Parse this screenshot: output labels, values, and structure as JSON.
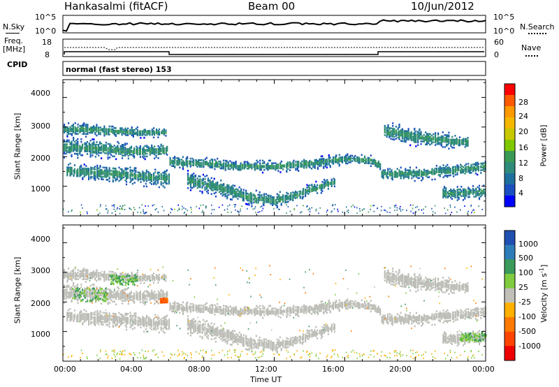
{
  "header": {
    "station": "Hankasalmi (fitACF)",
    "beam": "Beam 00",
    "date": "10/Jun/2012"
  },
  "sky_panel": {
    "left_label": "N.Sky",
    "right_label": "N.Search",
    "left_ticks": [
      "10^5",
      "10^0"
    ],
    "right_ticks": [
      "10^5",
      "10^0"
    ]
  },
  "freq_panel": {
    "left_label_line1": "Freq.",
    "left_label_line2": "[MHz]",
    "right_label": "Nave",
    "left_ticks": [
      "18",
      "8"
    ],
    "right_ticks": [
      "60",
      "0"
    ]
  },
  "cpid": {
    "label": "CPID",
    "text": "normal (fast stereo) 153"
  },
  "chart_data": [
    {
      "type": "heatmap",
      "name": "power",
      "ylabel": "Slant Range [km]",
      "ylim": [
        0,
        4600
      ],
      "yticks": [
        "4000",
        "3000",
        "2000",
        "1000"
      ],
      "xlim": [
        0,
        24
      ],
      "colorbar_label": "Power [dB]",
      "colorbar_ticks": [
        "28",
        "24",
        "20",
        "16",
        "12",
        "8",
        "4"
      ],
      "colorbar_colors": [
        "#ff0000",
        "#ff5a00",
        "#ff9900",
        "#f5b800",
        "#c8c800",
        "#7fc800",
        "#3a9a55",
        "#2e8b7a",
        "#1f6f9e",
        "#1b4fbf",
        "#0000ff"
      ],
      "bands": [
        {
          "x": [
            0.2,
            1.5,
            3,
            4.5,
            5.99,
            6.01,
            8,
            10,
            12,
            14,
            16,
            17.5,
            17.99,
            18.01,
            20,
            22,
            24
          ],
          "center": [
            1550,
            1500,
            1450,
            1350,
            1300,
            1850,
            1800,
            1700,
            1700,
            1800,
            1950,
            1900,
            1750,
            1450,
            1450,
            1550,
            1700
          ],
          "halfwidth": [
            180,
            180,
            200,
            200,
            200,
            140,
            130,
            130,
            130,
            140,
            120,
            120,
            150,
            150,
            150,
            150,
            150
          ],
          "power": [
            26,
            27,
            27,
            26,
            24,
            20,
            18,
            17,
            18,
            19,
            20,
            20,
            18,
            16,
            16,
            20,
            24
          ]
        },
        {
          "x": [
            0,
            2,
            4,
            5.99
          ],
          "center": [
            2350,
            2300,
            2200,
            2250
          ],
          "halfwidth": [
            220,
            200,
            180,
            150
          ],
          "power": [
            14,
            13,
            11,
            10
          ]
        },
        {
          "x": [
            0,
            1,
            2.5,
            4,
            5.9
          ],
          "center": [
            2950,
            2950,
            2900,
            2850,
            2850
          ],
          "halfwidth": [
            150,
            150,
            130,
            120,
            100
          ],
          "power": [
            12,
            13,
            11,
            9,
            8
          ]
        },
        {
          "x": [
            7,
            9,
            10.5,
            12,
            13,
            14,
            15.5
          ],
          "center": [
            1250,
            950,
            650,
            550,
            700,
            900,
            1200
          ],
          "halfwidth": [
            200,
            200,
            180,
            160,
            150,
            150,
            120
          ],
          "power": [
            8,
            9,
            14,
            16,
            14,
            11,
            9
          ]
        },
        {
          "x": [
            21.5,
            22.5,
            24
          ],
          "center": [
            800,
            800,
            850
          ],
          "halfwidth": [
            150,
            150,
            150
          ],
          "power": [
            18,
            22,
            24
          ]
        },
        {
          "x": [
            18.2,
            20,
            21.5,
            23
          ],
          "center": [
            2900,
            2700,
            2600,
            2500
          ],
          "halfwidth": [
            200,
            200,
            180,
            150
          ],
          "power": [
            9,
            8,
            7,
            7
          ]
        }
      ]
    },
    {
      "type": "heatmap",
      "name": "velocity",
      "ylabel": "Slant Range [km]",
      "ylim": [
        0,
        4600
      ],
      "yticks": [
        "4000",
        "3000",
        "2000",
        "1000"
      ],
      "xlabel": "Time UT",
      "xticks": [
        "00:00",
        "04:00",
        "08:00",
        "12:00",
        "16:00",
        "20:00",
        "00:00"
      ],
      "xlim": [
        0,
        24
      ],
      "colorbar_label": "Velocity [m s",
      "colorbar_label_sup": "-1",
      "colorbar_label_end": "]",
      "colorbar_ticks": [
        "1000",
        "500",
        "100",
        "25",
        "-25",
        "-100",
        "-500",
        "-1000"
      ],
      "colorbar_colors": [
        "#1f4fb0",
        "#2e7db8",
        "#3b9a5a",
        "#7fcc3f",
        "#c0c0b8",
        "#ffb000",
        "#ff7a00",
        "#ff4400",
        "#ee0000"
      ],
      "ground_scatter_color": "#bebeb8",
      "bands": [
        {
          "x": [
            0.2,
            1.5,
            3,
            4.5,
            5.99,
            6.01,
            8,
            10,
            12,
            14,
            16,
            17.5,
            17.99,
            18.01,
            20,
            22,
            24
          ],
          "center": [
            1550,
            1500,
            1450,
            1350,
            1300,
            1850,
            1800,
            1700,
            1700,
            1800,
            1950,
            1900,
            1750,
            1450,
            1450,
            1550,
            1700
          ],
          "halfwidth": [
            180,
            180,
            200,
            200,
            200,
            140,
            130,
            130,
            130,
            140,
            120,
            120,
            150,
            150,
            150,
            150,
            150
          ]
        },
        {
          "x": [
            0,
            2,
            4,
            5.99
          ],
          "center": [
            2350,
            2300,
            2200,
            2250
          ],
          "halfwidth": [
            220,
            200,
            180,
            150
          ]
        },
        {
          "x": [
            0,
            1,
            2.5,
            4,
            5.9
          ],
          "center": [
            2950,
            2950,
            2900,
            2850,
            2850
          ],
          "halfwidth": [
            150,
            150,
            130,
            120,
            100
          ]
        },
        {
          "x": [
            7,
            9,
            10.5,
            12,
            13,
            14,
            15.5
          ],
          "center": [
            1250,
            950,
            650,
            550,
            700,
            900,
            1200
          ],
          "halfwidth": [
            200,
            200,
            180,
            160,
            150,
            150,
            120
          ]
        },
        {
          "x": [
            21.5,
            22.5,
            24
          ],
          "center": [
            800,
            800,
            850
          ],
          "halfwidth": [
            150,
            150,
            150
          ]
        },
        {
          "x": [
            18.2,
            20,
            21.5,
            23
          ],
          "center": [
            2900,
            2700,
            2600,
            2500
          ],
          "halfwidth": [
            200,
            200,
            180,
            150
          ]
        }
      ],
      "ionospheric_patches": [
        {
          "x": [
            0.5,
            2.5
          ],
          "y": [
            2050,
            2500
          ],
          "velocity": 100
        },
        {
          "x": [
            2.6,
            4.2
          ],
          "y": [
            2600,
            2950
          ],
          "velocity": 100
        },
        {
          "x": [
            22.5,
            24
          ],
          "y": [
            700,
            1000
          ],
          "velocity": 100
        },
        {
          "x": [
            5.5,
            5.9
          ],
          "y": [
            2000,
            2150
          ],
          "velocity": -500
        }
      ]
    }
  ]
}
